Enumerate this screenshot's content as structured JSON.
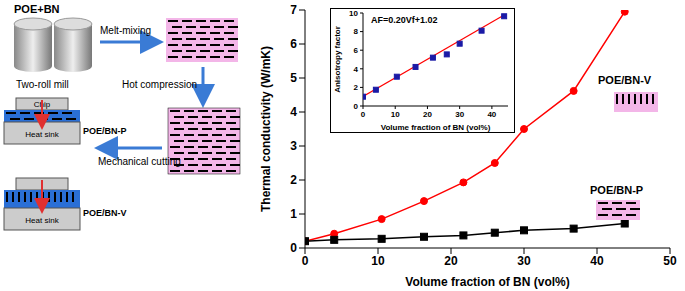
{
  "diagram": {
    "material": "POE+BN",
    "mill": "Two-roll mill",
    "steps": [
      "Melt-mixing",
      "Hot compression",
      "Mechanical cutting"
    ],
    "device": {
      "chip": "Chip",
      "heat_sink": "Heat sink"
    },
    "samples": [
      "POE/BN-P",
      "POE/BN-V"
    ]
  },
  "chart_data": [
    {
      "type": "line",
      "x_label": "Volume fraction of BN (vol%)",
      "y_label": "Thermal conductivity (W/mK)",
      "x": [
        0,
        4,
        10.5,
        16.3,
        21.7,
        26,
        30,
        36.8,
        43.8
      ],
      "series": [
        {
          "name": "POE/BN-V",
          "color": "#ff0000",
          "marker": "circle",
          "values": [
            0.2,
            0.42,
            0.85,
            1.38,
            1.93,
            2.5,
            3.5,
            4.62,
            6.95
          ]
        },
        {
          "name": "POE/BN-P",
          "color": "#000000",
          "marker": "square",
          "values": [
            0.2,
            0.24,
            0.27,
            0.33,
            0.37,
            0.45,
            0.52,
            0.57,
            0.72
          ]
        }
      ],
      "xlim": [
        0,
        50
      ],
      "xticks": [
        0,
        10,
        20,
        30,
        40,
        50
      ],
      "ylim": [
        0,
        7
      ],
      "yticks": [
        0,
        1,
        2,
        3,
        4,
        5,
        6,
        7
      ],
      "grid": false
    },
    {
      "type": "scatter",
      "annotations": [
        "AF=0.20Vf+1.02"
      ],
      "x_label": "Volume fraction of BN (vol%)",
      "y_label": "Anisotropy factor",
      "series": [
        {
          "type": "scatter",
          "color": "#1a1aa6",
          "marker": "square",
          "x": [
            0,
            4,
            10.5,
            16.3,
            21.7,
            26,
            30,
            36.8,
            43.8
          ],
          "values": [
            1,
            1.75,
            3.15,
            4.2,
            5.2,
            5.55,
            6.7,
            8.1,
            9.65
          ]
        },
        {
          "type": "line",
          "color": "#ff0000",
          "x": [
            0,
            43.8
          ],
          "values": [
            1.02,
            9.78
          ]
        }
      ],
      "xlim": [
        0,
        45
      ],
      "xticks": [
        0,
        10,
        20,
        30,
        40
      ],
      "ylim": [
        0,
        10
      ],
      "yticks": [
        0,
        2,
        4,
        6,
        8,
        10
      ],
      "grid": false
    }
  ]
}
